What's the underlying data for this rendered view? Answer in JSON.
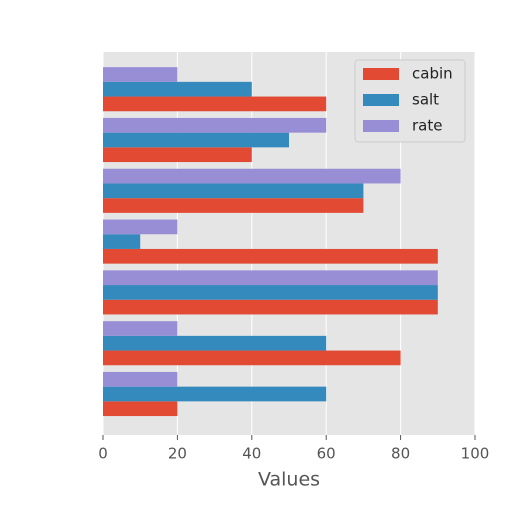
{
  "chart_data": {
    "type": "barh",
    "categories": [
      null,
      null,
      null,
      null,
      null,
      null,
      null
    ],
    "series": [
      {
        "name": "cabin",
        "color": "#E24A33",
        "values": [
          20,
          80,
          90,
          90,
          70,
          40,
          60
        ]
      },
      {
        "name": "salt",
        "color": "#348ABD",
        "values": [
          60,
          60,
          90,
          10,
          70,
          50,
          40
        ]
      },
      {
        "name": "rate",
        "color": "#988ED5",
        "values": [
          20,
          20,
          90,
          20,
          80,
          60,
          20
        ]
      }
    ],
    "xlabel": "Values",
    "xlim": [
      0,
      100
    ],
    "xticks": [
      0,
      20,
      40,
      60,
      80,
      100
    ],
    "grid": true,
    "legend": "upper right"
  }
}
